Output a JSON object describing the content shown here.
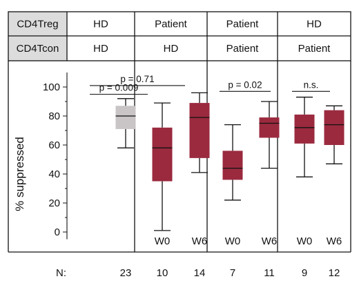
{
  "chart_data": {
    "type": "box",
    "ylabel": "% suppressed",
    "ylim": [
      -5,
      110
    ],
    "yticks": [
      0,
      20,
      40,
      60,
      80,
      100
    ],
    "header": {
      "rows": [
        {
          "label": "CD4Treg",
          "groups": [
            "HD",
            "Patient",
            "Patient",
            "HD"
          ]
        },
        {
          "label": "CD4Tcon",
          "groups": [
            "HD",
            "HD",
            "Patient",
            "Patient"
          ]
        }
      ]
    },
    "n_label": "N:",
    "colors": {
      "hd_box": "#c9c4c6",
      "patient_box": "#9b2a3f",
      "header_label_bg": "#dcdcdc"
    },
    "boxes": [
      {
        "group": 0,
        "sublabel": "",
        "n": "23",
        "whisker_low": 58,
        "q1": 71,
        "median": 80,
        "q3": 87,
        "whisker_high": 92,
        "color": "hd"
      },
      {
        "group": 1,
        "sublabel": "W0",
        "n": "10",
        "whisker_low": 1,
        "q1": 35,
        "median": 58,
        "q3": 72,
        "whisker_high": 89,
        "color": "patient"
      },
      {
        "group": 1,
        "sublabel": "W6",
        "n": "14",
        "whisker_low": 41,
        "q1": 51,
        "median": 79,
        "q3": 89,
        "whisker_high": 96,
        "color": "patient"
      },
      {
        "group": 2,
        "sublabel": "W0",
        "n": "7",
        "whisker_low": 22,
        "q1": 36,
        "median": 44,
        "q3": 56,
        "whisker_high": 74,
        "color": "patient"
      },
      {
        "group": 2,
        "sublabel": "W6",
        "n": "11",
        "whisker_low": 44,
        "q1": 65,
        "median": 75,
        "q3": 79,
        "whisker_high": 90,
        "color": "patient"
      },
      {
        "group": 3,
        "sublabel": "W0",
        "n": "9",
        "whisker_low": 38,
        "q1": 61,
        "median": 72,
        "q3": 81,
        "whisker_high": 93,
        "color": "patient"
      },
      {
        "group": 3,
        "sublabel": "W6",
        "n": "12",
        "whisker_low": 47,
        "q1": 60,
        "median": 74,
        "q3": 84,
        "whisker_high": 87,
        "color": "patient"
      }
    ],
    "annotations": [
      {
        "text": "p = 0.71",
        "from": 0,
        "to": 2,
        "y": 101
      },
      {
        "text": "p = 0.009",
        "from": 0,
        "to": 1,
        "y": 95
      },
      {
        "text": "p = 0.02",
        "from": 3,
        "to": 4,
        "y": 97
      },
      {
        "text": "n.s.",
        "from": 5,
        "to": 6,
        "y": 97
      }
    ]
  }
}
